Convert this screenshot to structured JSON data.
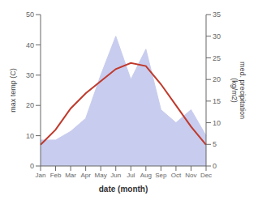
{
  "chart_data": {
    "type": "line",
    "categories": [
      "Jan",
      "Feb",
      "Mar",
      "Apr",
      "May",
      "Jun",
      "Jul",
      "Aug",
      "Sep",
      "Oct",
      "Nov",
      "Dec"
    ],
    "series": [
      {
        "type": "area",
        "color": "#c8ccee",
        "axis": "y2",
        "values": [
          6,
          6,
          8,
          11,
          21,
          30,
          20,
          27,
          13,
          10,
          13,
          7
        ]
      },
      {
        "type": "line",
        "color": "#c0392b",
        "values": [
          7,
          12,
          19,
          24,
          28,
          32,
          34,
          33,
          27,
          20,
          13,
          7
        ]
      }
    ],
    "xlabel": "date (month)",
    "ylabel": "max temp (C)",
    "y2label": "med. precipitation\n(kg/m2)",
    "ylim": [
      0,
      50
    ],
    "yticks": [
      0,
      10,
      20,
      30,
      40,
      50
    ],
    "y2lim": [
      0,
      35
    ],
    "y2ticks": [
      0,
      5,
      10,
      15,
      20,
      25,
      30,
      35
    ],
    "grid": false
  }
}
